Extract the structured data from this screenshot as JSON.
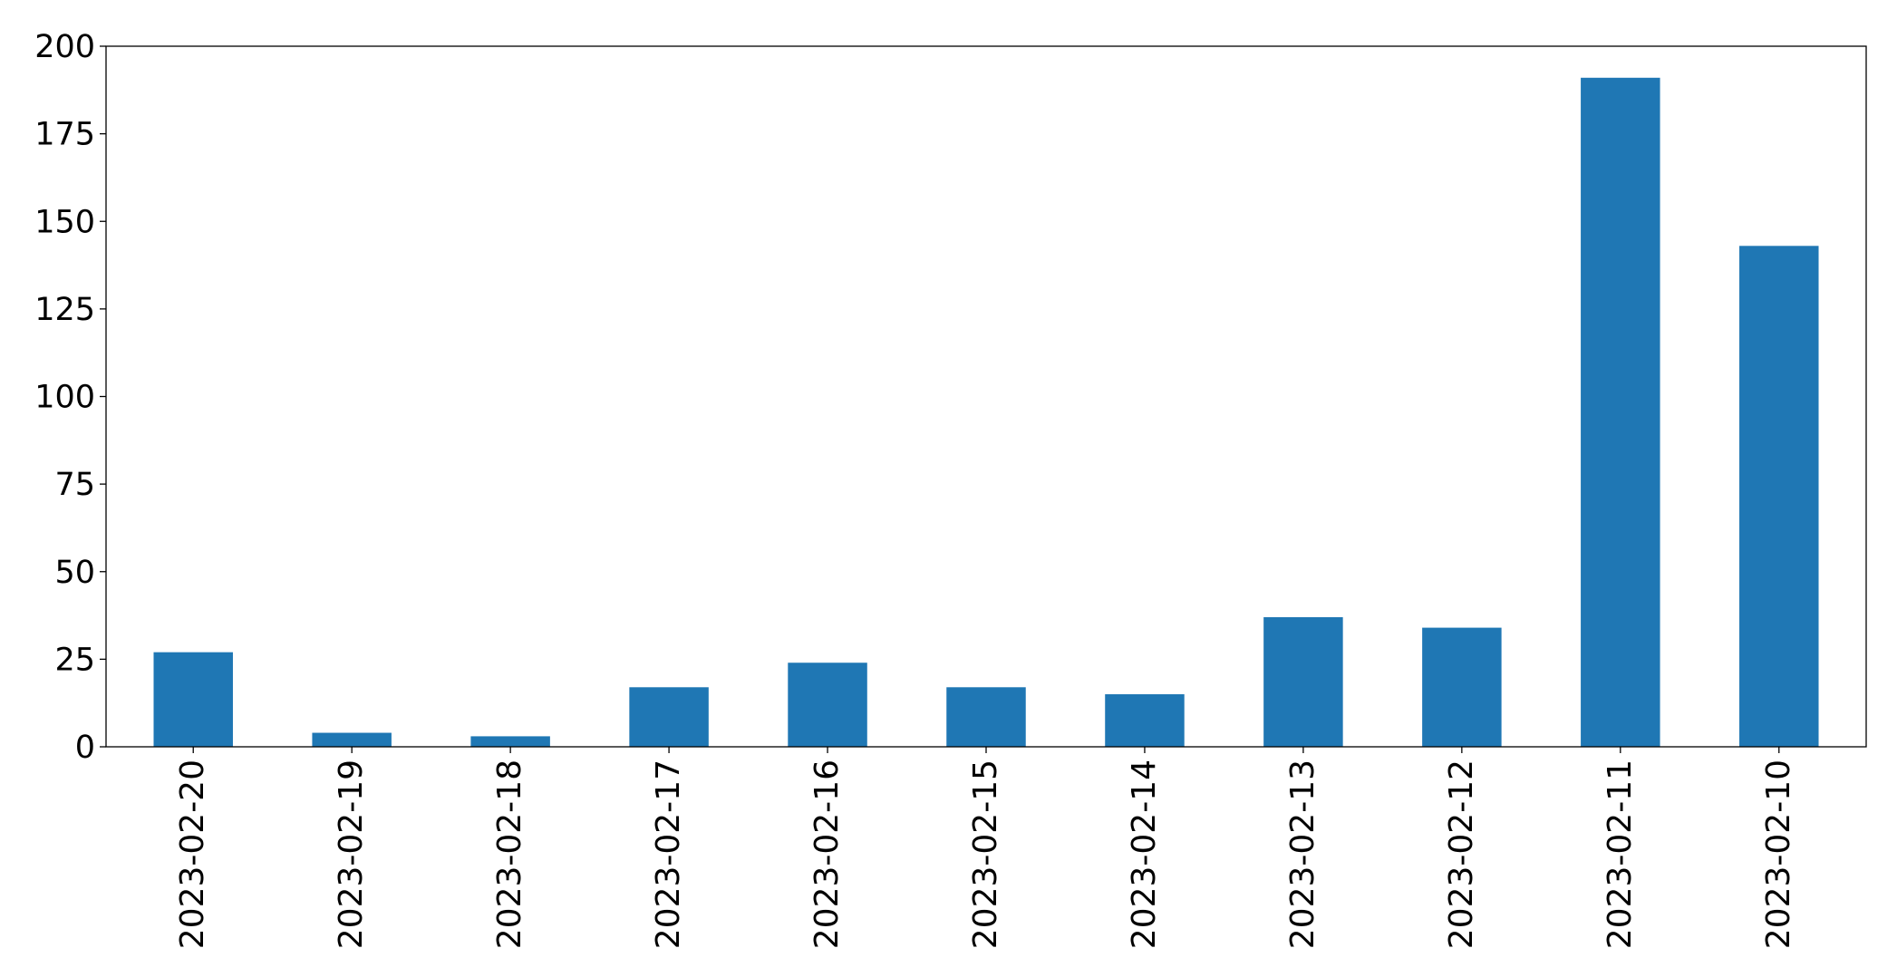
{
  "chart_data": {
    "type": "bar",
    "title": "",
    "xlabel": "",
    "ylabel": "",
    "categories": [
      "2023-02-20",
      "2023-02-19",
      "2023-02-18",
      "2023-02-17",
      "2023-02-16",
      "2023-02-15",
      "2023-02-14",
      "2023-02-13",
      "2023-02-12",
      "2023-02-11",
      "2023-02-10"
    ],
    "values": [
      27,
      4,
      3,
      17,
      24,
      17,
      15,
      37,
      34,
      191,
      143
    ],
    "ylim": [
      0,
      200
    ],
    "yticks": [
      0,
      25,
      50,
      75,
      100,
      125,
      150,
      175,
      200
    ],
    "grid": false,
    "legend": "none",
    "bar_color": "#1f77b4",
    "axis_color": "#000000"
  }
}
